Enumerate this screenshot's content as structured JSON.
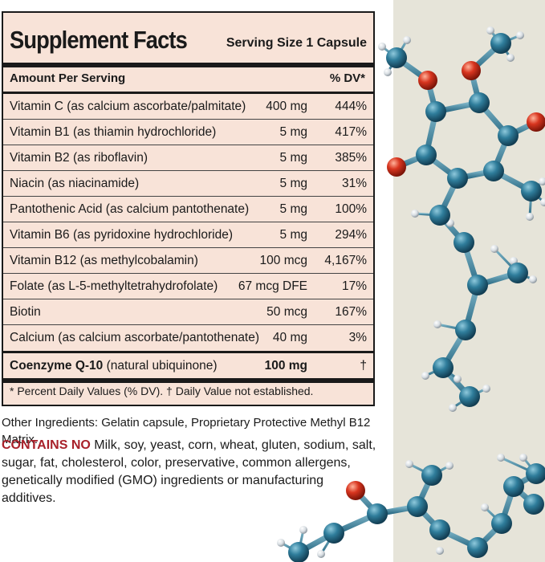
{
  "label": {
    "title": "Supplement Facts",
    "serving_size": "Serving Size 1 Capsule",
    "header_amount": "Amount Per Serving",
    "header_dv": "% DV*",
    "rows": [
      {
        "name": "Vitamin C",
        "detail": "(as calcium ascorbate/palmitate)",
        "amount": "400 mg",
        "dv": "444%"
      },
      {
        "name": "Vitamin B1",
        "detail": "(as thiamin hydrochloride)",
        "amount": "5 mg",
        "dv": "417%"
      },
      {
        "name": "Vitamin B2",
        "detail": "(as riboflavin)",
        "amount": "5 mg",
        "dv": "385%"
      },
      {
        "name": "Niacin",
        "detail": "(as niacinamide)",
        "amount": "5 mg",
        "dv": "31%"
      },
      {
        "name": "Pantothenic Acid",
        "detail": "(as calcium pantothenate)",
        "amount": "5 mg",
        "dv": "100%"
      },
      {
        "name": "Vitamin B6",
        "detail": "(as pyridoxine hydrochloride)",
        "amount": "5 mg",
        "dv": "294%"
      },
      {
        "name": "Vitamin B12",
        "detail": "(as methylcobalamin)",
        "amount": "100 mcg",
        "dv": "4,167%"
      },
      {
        "name": "Folate",
        "detail": "(as L-5-methyltetrahydrofolate)",
        "amount": "67 mcg DFE",
        "dv": "17%"
      },
      {
        "name": "Biotin",
        "detail": "",
        "amount": "50 mcg",
        "dv": "167%"
      },
      {
        "name": "Calcium",
        "detail": "(as calcium ascorbate/pantothenate)",
        "amount": "40 mg",
        "dv": "3%"
      }
    ],
    "coq10": {
      "name": "Coenzyme Q-10",
      "detail": "(natural ubiquinone)",
      "amount": "100 mg",
      "dv": "†"
    },
    "footnote": "* Percent Daily Values (% DV). † Daily Value not established."
  },
  "other_ingredients": "Other Ingredients: Gelatin capsule, Proprietary Protective Methyl B12 Matrix.",
  "contains_no": {
    "lead": "CONTAINS NO",
    "text": "Milk, soy, yeast, corn, wheat, gluten, sodium, salt, sugar, fat, cholesterol, color, preservative, common allergens, genetically modified (GMO) ingredients or manufacturing additives."
  },
  "colors": {
    "panel_background": "#f8e3d8",
    "contains_no_red": "#a8212a",
    "molecule_carbon": "#2f7d9b",
    "molecule_oxygen": "#d8351f",
    "backdrop": "#e6e4d9"
  },
  "illustration": "coenzyme-q10-molecule"
}
